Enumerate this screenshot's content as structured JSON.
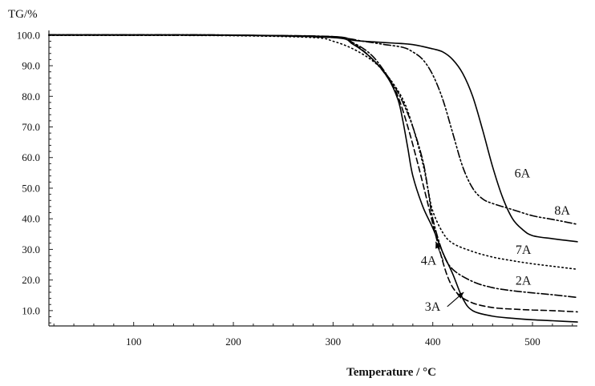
{
  "chart_data": {
    "type": "line",
    "xlabel": "Temperature / °C",
    "ylabel": "TG/%",
    "xlim": [
      15,
      545
    ],
    "ylim": [
      5,
      101
    ],
    "xticks": [
      "100",
      "200",
      "300",
      "400",
      "500"
    ],
    "yticks": [
      "100.0",
      "90.0",
      "80.0",
      "70.0",
      "60.0",
      "50.0",
      "40.0",
      "30.0",
      "20.0",
      "10.0"
    ],
    "grid": false,
    "legend": "none",
    "series": [
      {
        "name": "6A",
        "dash": "solid",
        "x": [
          15,
          100,
          200,
          300,
          320,
          340,
          360,
          380,
          400,
          410,
          420,
          430,
          440,
          450,
          460,
          470,
          480,
          490,
          500,
          520,
          545
        ],
        "y": [
          100.1,
          100.1,
          100.0,
          99.5,
          98.3,
          97.8,
          97.4,
          96.9,
          95.5,
          94.5,
          92.0,
          87.5,
          80.0,
          69.0,
          57.0,
          47.0,
          40.0,
          36.5,
          34.5,
          33.5,
          32.5
        ]
      },
      {
        "name": "8A",
        "dash": "dashdotdot",
        "x": [
          15,
          100,
          200,
          300,
          330,
          350,
          370,
          380,
          390,
          400,
          410,
          420,
          430,
          440,
          450,
          460,
          480,
          500,
          520,
          545
        ],
        "y": [
          100.1,
          100.1,
          100.0,
          99.2,
          98.0,
          97.0,
          96.0,
          94.5,
          92.0,
          87.0,
          79.0,
          68.0,
          57.0,
          50.0,
          46.5,
          45.0,
          43.0,
          41.0,
          39.8,
          38.2
        ]
      },
      {
        "name": "7A",
        "dash": "dotted",
        "x": [
          15,
          100,
          200,
          280,
          300,
          320,
          340,
          355,
          370,
          380,
          390,
          395,
          400,
          410,
          420,
          440,
          460,
          480,
          500,
          520,
          545
        ],
        "y": [
          99.9,
          99.9,
          99.8,
          99.2,
          98.0,
          95.5,
          91.5,
          86.5,
          79.0,
          70.0,
          58.0,
          50.0,
          42.5,
          35.5,
          32.0,
          29.3,
          27.5,
          26.3,
          25.3,
          24.5,
          23.5
        ]
      },
      {
        "name": "2A",
        "dash": "dashdot",
        "x": [
          15,
          100,
          200,
          300,
          320,
          340,
          360,
          370,
          380,
          390,
          395,
          400,
          410,
          420,
          440,
          460,
          480,
          500,
          520,
          545
        ],
        "y": [
          100.0,
          100.0,
          99.9,
          99.5,
          97.5,
          93.0,
          84.0,
          78.0,
          70.0,
          59.0,
          50.0,
          40.0,
          29.0,
          23.5,
          19.5,
          17.5,
          16.5,
          15.8,
          15.2,
          14.3
        ]
      },
      {
        "name": "4A",
        "dash": "dashed",
        "x": [
          15,
          100,
          200,
          300,
          320,
          340,
          355,
          365,
          375,
          385,
          395,
          405,
          415,
          425,
          440,
          460,
          480,
          500,
          520,
          545
        ],
        "y": [
          100.0,
          100.0,
          99.9,
          99.4,
          97.3,
          92.0,
          86.0,
          80.0,
          70.0,
          58.0,
          45.0,
          32.0,
          21.0,
          15.5,
          12.5,
          11.0,
          10.5,
          10.2,
          10.0,
          9.6
        ]
      },
      {
        "name": "3A",
        "dash": "solid",
        "x": [
          15,
          100,
          200,
          300,
          320,
          340,
          355,
          365,
          370,
          375,
          380,
          390,
          400,
          410,
          420,
          430,
          440,
          460,
          480,
          500,
          520,
          545
        ],
        "y": [
          100.0,
          100.0,
          100.0,
          99.2,
          97.0,
          92.0,
          86.0,
          79.0,
          72.0,
          63.0,
          54.0,
          44.0,
          37.0,
          29.0,
          22.0,
          14.0,
          10.0,
          8.2,
          7.5,
          7.0,
          6.7,
          6.3
        ]
      }
    ],
    "annotations": [
      {
        "text": "6A",
        "x": 482,
        "y": 53.5
      },
      {
        "text": "8A",
        "x": 522,
        "y": 41.3
      },
      {
        "text": "7A",
        "x": 483,
        "y": 28.5
      },
      {
        "text": "2A",
        "x": 483,
        "y": 18.5
      },
      {
        "text": "4A",
        "x": 388,
        "y": 25.0,
        "arrow_to": {
          "x": 403,
          "y": 32.5
        }
      },
      {
        "text": "3A",
        "x": 392,
        "y": 10.0,
        "arrow_to": {
          "x": 431,
          "y": 16.0
        }
      }
    ]
  }
}
